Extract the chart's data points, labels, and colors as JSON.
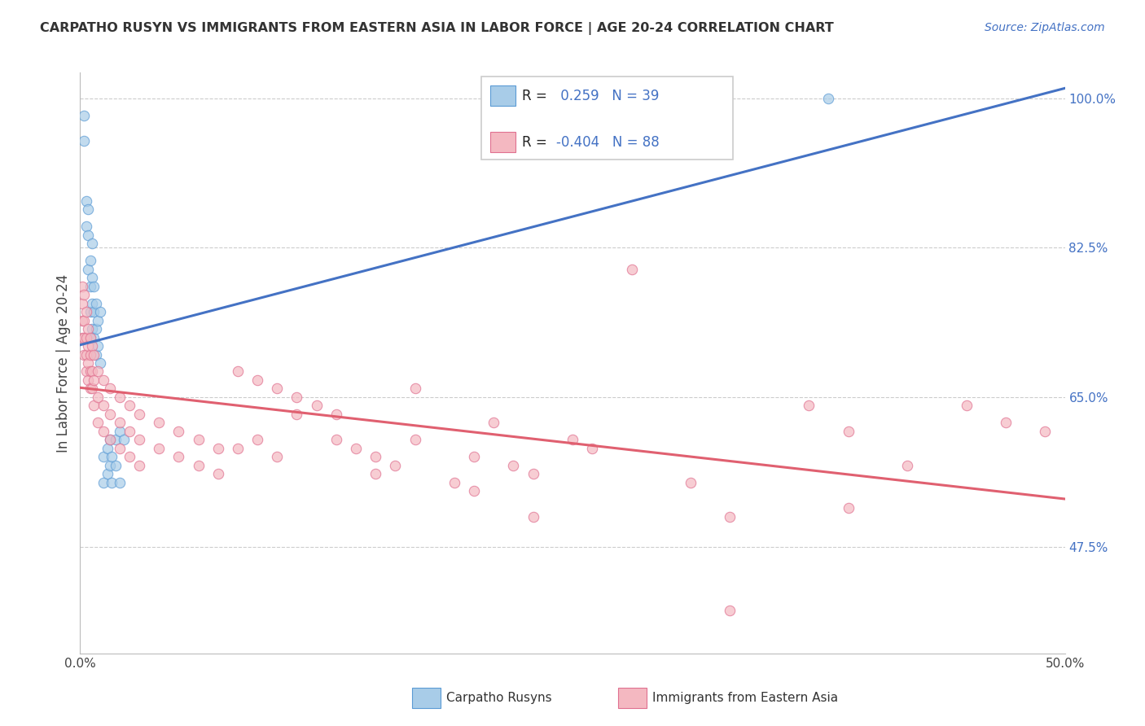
{
  "title": "CARPATHO RUSYN VS IMMIGRANTS FROM EASTERN ASIA IN LABOR FORCE | AGE 20-24 CORRELATION CHART",
  "source": "Source: ZipAtlas.com",
  "ylabel": "In Labor Force | Age 20-24",
  "xmin": 0.0,
  "xmax": 0.5,
  "ymin": 0.35,
  "ymax": 1.03,
  "yticks": [
    0.475,
    0.65,
    0.825,
    1.0
  ],
  "ytick_labels": [
    "47.5%",
    "65.0%",
    "82.5%",
    "100.0%"
  ],
  "xticks": [
    0.0,
    0.5
  ],
  "xtick_labels": [
    "0.0%",
    "50.0%"
  ],
  "r_blue": 0.259,
  "n_blue": 39,
  "r_pink": -0.404,
  "n_pink": 88,
  "blue_scatter_color": "#a8cce8",
  "blue_edge_color": "#5b9bd5",
  "pink_scatter_color": "#f4b8c1",
  "pink_edge_color": "#e07090",
  "line_blue_color": "#4472c4",
  "line_pink_color": "#e06070",
  "legend_label_blue": "Carpatho Rusyns",
  "legend_label_pink": "Immigrants from Eastern Asia",
  "blue_scatter": [
    [
      0.002,
      0.98
    ],
    [
      0.002,
      0.95
    ],
    [
      0.003,
      0.88
    ],
    [
      0.003,
      0.85
    ],
    [
      0.004,
      0.87
    ],
    [
      0.004,
      0.84
    ],
    [
      0.004,
      0.8
    ],
    [
      0.005,
      0.81
    ],
    [
      0.005,
      0.78
    ],
    [
      0.005,
      0.75
    ],
    [
      0.005,
      0.72
    ],
    [
      0.006,
      0.83
    ],
    [
      0.006,
      0.79
    ],
    [
      0.006,
      0.76
    ],
    [
      0.006,
      0.73
    ],
    [
      0.007,
      0.78
    ],
    [
      0.007,
      0.75
    ],
    [
      0.007,
      0.72
    ],
    [
      0.008,
      0.76
    ],
    [
      0.008,
      0.73
    ],
    [
      0.008,
      0.7
    ],
    [
      0.009,
      0.74
    ],
    [
      0.009,
      0.71
    ],
    [
      0.01,
      0.75
    ],
    [
      0.01,
      0.69
    ],
    [
      0.012,
      0.58
    ],
    [
      0.012,
      0.55
    ],
    [
      0.014,
      0.59
    ],
    [
      0.014,
      0.56
    ],
    [
      0.015,
      0.6
    ],
    [
      0.015,
      0.57
    ],
    [
      0.016,
      0.58
    ],
    [
      0.016,
      0.55
    ],
    [
      0.018,
      0.6
    ],
    [
      0.018,
      0.57
    ],
    [
      0.02,
      0.61
    ],
    [
      0.02,
      0.55
    ],
    [
      0.022,
      0.6
    ],
    [
      0.38,
      1.0
    ]
  ],
  "pink_scatter": [
    [
      0.001,
      0.78
    ],
    [
      0.001,
      0.76
    ],
    [
      0.001,
      0.74
    ],
    [
      0.001,
      0.72
    ],
    [
      0.002,
      0.77
    ],
    [
      0.002,
      0.74
    ],
    [
      0.002,
      0.72
    ],
    [
      0.002,
      0.7
    ],
    [
      0.003,
      0.75
    ],
    [
      0.003,
      0.72
    ],
    [
      0.003,
      0.7
    ],
    [
      0.003,
      0.68
    ],
    [
      0.004,
      0.73
    ],
    [
      0.004,
      0.71
    ],
    [
      0.004,
      0.69
    ],
    [
      0.004,
      0.67
    ],
    [
      0.005,
      0.72
    ],
    [
      0.005,
      0.7
    ],
    [
      0.005,
      0.68
    ],
    [
      0.005,
      0.66
    ],
    [
      0.006,
      0.71
    ],
    [
      0.006,
      0.68
    ],
    [
      0.006,
      0.66
    ],
    [
      0.007,
      0.7
    ],
    [
      0.007,
      0.67
    ],
    [
      0.007,
      0.64
    ],
    [
      0.009,
      0.68
    ],
    [
      0.009,
      0.65
    ],
    [
      0.009,
      0.62
    ],
    [
      0.012,
      0.67
    ],
    [
      0.012,
      0.64
    ],
    [
      0.012,
      0.61
    ],
    [
      0.015,
      0.66
    ],
    [
      0.015,
      0.63
    ],
    [
      0.015,
      0.6
    ],
    [
      0.02,
      0.65
    ],
    [
      0.02,
      0.62
    ],
    [
      0.02,
      0.59
    ],
    [
      0.025,
      0.64
    ],
    [
      0.025,
      0.61
    ],
    [
      0.025,
      0.58
    ],
    [
      0.03,
      0.63
    ],
    [
      0.03,
      0.6
    ],
    [
      0.03,
      0.57
    ],
    [
      0.04,
      0.62
    ],
    [
      0.04,
      0.59
    ],
    [
      0.05,
      0.61
    ],
    [
      0.05,
      0.58
    ],
    [
      0.06,
      0.6
    ],
    [
      0.06,
      0.57
    ],
    [
      0.07,
      0.59
    ],
    [
      0.07,
      0.56
    ],
    [
      0.08,
      0.68
    ],
    [
      0.08,
      0.59
    ],
    [
      0.09,
      0.67
    ],
    [
      0.09,
      0.6
    ],
    [
      0.1,
      0.66
    ],
    [
      0.1,
      0.58
    ],
    [
      0.11,
      0.65
    ],
    [
      0.11,
      0.63
    ],
    [
      0.12,
      0.64
    ],
    [
      0.13,
      0.63
    ],
    [
      0.13,
      0.6
    ],
    [
      0.14,
      0.59
    ],
    [
      0.15,
      0.58
    ],
    [
      0.15,
      0.56
    ],
    [
      0.16,
      0.57
    ],
    [
      0.17,
      0.66
    ],
    [
      0.17,
      0.6
    ],
    [
      0.19,
      0.55
    ],
    [
      0.2,
      0.58
    ],
    [
      0.2,
      0.54
    ],
    [
      0.21,
      0.62
    ],
    [
      0.22,
      0.57
    ],
    [
      0.23,
      0.56
    ],
    [
      0.23,
      0.51
    ],
    [
      0.25,
      0.6
    ],
    [
      0.26,
      0.59
    ],
    [
      0.28,
      0.8
    ],
    [
      0.31,
      0.55
    ],
    [
      0.33,
      0.51
    ],
    [
      0.33,
      0.4
    ],
    [
      0.37,
      0.64
    ],
    [
      0.39,
      0.61
    ],
    [
      0.39,
      0.52
    ],
    [
      0.42,
      0.57
    ],
    [
      0.45,
      0.64
    ],
    [
      0.47,
      0.62
    ],
    [
      0.49,
      0.61
    ]
  ]
}
